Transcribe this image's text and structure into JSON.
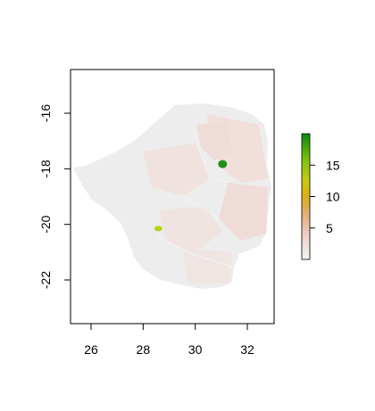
{
  "chart_data": {
    "type": "heatmap",
    "title": "",
    "xlabel": "",
    "ylabel": "",
    "xlim": [
      25.2,
      33.1
    ],
    "ylim": [
      -23.6,
      -14.4
    ],
    "x_ticks": [
      26,
      28,
      30,
      32
    ],
    "x_tick_labels": [
      "26",
      "28",
      "30",
      "32"
    ],
    "y_ticks": [
      -16,
      -18,
      -20,
      -22
    ],
    "y_tick_labels": [
      "-16",
      "-18",
      "-20",
      "-22"
    ],
    "legend": {
      "placement": "right",
      "range": [
        0,
        20
      ],
      "ticks": [
        5,
        10,
        15
      ],
      "tick_labels": [
        "5",
        "10",
        "15"
      ],
      "colors": [
        "#f2f2f2",
        "#eec9bd",
        "#e2a05a",
        "#d8b10a",
        "#b8cf12",
        "#5fc00e",
        "#0a8c0a"
      ]
    },
    "hotspots": [
      {
        "lon": 31.05,
        "lat": -17.83,
        "value": 19,
        "color": "#1f8f1a"
      },
      {
        "lon": 28.58,
        "lat": -20.15,
        "value": 12,
        "color": "#b9d20f"
      }
    ],
    "base_color": "#eeeeee",
    "region_tint_color": "#f1dcd7"
  }
}
